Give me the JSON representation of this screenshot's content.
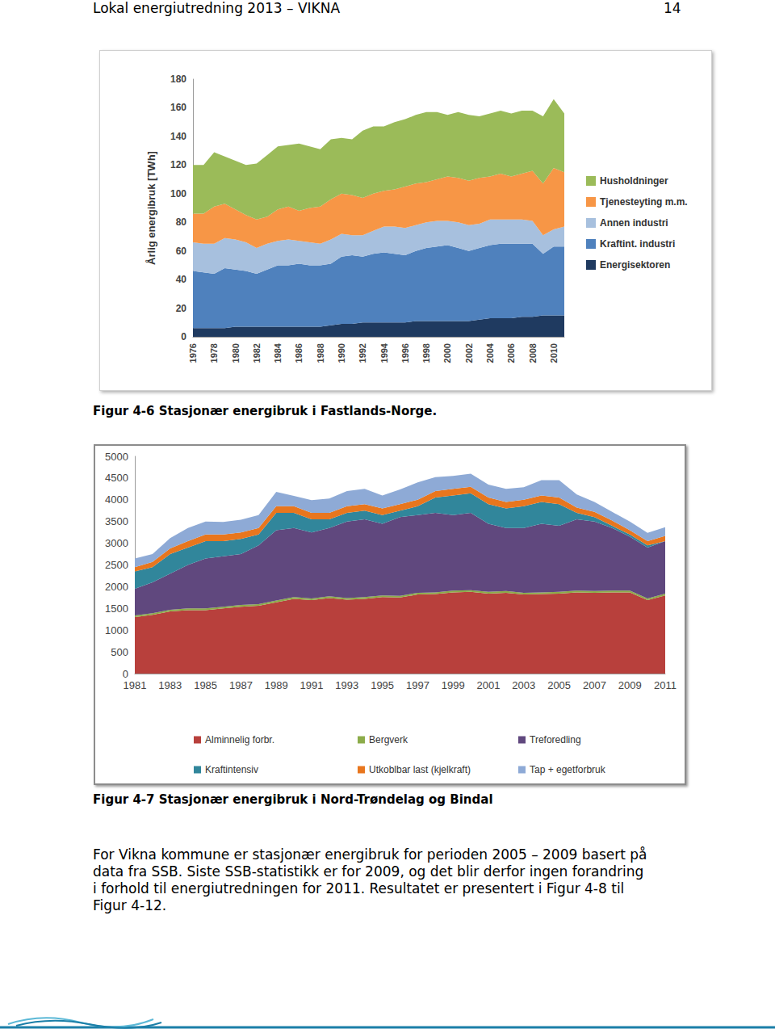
{
  "header": {
    "title": "Lokal energiutredning 2013 – VIKNA",
    "page": 14
  },
  "chart_data": [
    {
      "type": "area",
      "stacked": true,
      "grid": false,
      "legend": "right",
      "y_label": "Årlig energibruk [TWh]",
      "categories": [
        "1976",
        null,
        "1978",
        null,
        "1980",
        null,
        "1982",
        null,
        "1984",
        null,
        "1986",
        null,
        "1988",
        null,
        "1990",
        null,
        "1992",
        null,
        "1994",
        null,
        "1996",
        null,
        "1998",
        null,
        "2000",
        null,
        "2002",
        null,
        "2004",
        null,
        "2006",
        null,
        "2008",
        null,
        "2010",
        null
      ],
      "ylim": [
        0,
        180
      ],
      "yticks": [
        0,
        20,
        40,
        60,
        80,
        100,
        120,
        140,
        160,
        180
      ],
      "series": [
        {
          "name": "Energisektoren",
          "color": "#1f3a60",
          "values": [
            6,
            6,
            6,
            6,
            7,
            7,
            7,
            7,
            7,
            7,
            7,
            7,
            7,
            8,
            9,
            9,
            10,
            10,
            10,
            10,
            10,
            11,
            11,
            11,
            11,
            11,
            11,
            12,
            13,
            13,
            13,
            14,
            14,
            15,
            15,
            15
          ]
        },
        {
          "name": "Kraftint. industri",
          "color": "#4f81bd",
          "values": [
            40,
            39,
            38,
            42,
            40,
            39,
            37,
            40,
            43,
            43,
            44,
            43,
            43,
            43,
            47,
            48,
            46,
            48,
            49,
            48,
            47,
            49,
            51,
            52,
            53,
            51,
            49,
            50,
            51,
            52,
            52,
            51,
            51,
            43,
            48,
            48
          ]
        },
        {
          "name": "Annen industri",
          "color": "#a7c0de",
          "values": [
            20,
            20,
            21,
            21,
            21,
            20,
            18,
            18,
            17,
            18,
            16,
            16,
            15,
            17,
            16,
            14,
            15,
            16,
            18,
            19,
            19,
            18,
            18,
            18,
            17,
            18,
            18,
            17,
            18,
            17,
            17,
            17,
            16,
            13,
            12,
            14
          ]
        },
        {
          "name": "Tjenesteyting m.m.",
          "color": "#f79646",
          "values": [
            20,
            21,
            26,
            24,
            21,
            19,
            20,
            19,
            22,
            23,
            21,
            24,
            26,
            28,
            28,
            28,
            26,
            26,
            25,
            26,
            29,
            29,
            28,
            29,
            31,
            31,
            31,
            32,
            30,
            32,
            30,
            32,
            35,
            36,
            43,
            38
          ]
        },
        {
          "name": "Husholdninger",
          "color": "#9bbb59",
          "values": [
            34,
            34,
            38,
            33,
            34,
            35,
            39,
            43,
            44,
            43,
            47,
            43,
            40,
            42,
            39,
            39,
            47,
            47,
            45,
            47,
            47,
            48,
            49,
            47,
            43,
            46,
            46,
            43,
            44,
            44,
            44,
            44,
            42,
            47,
            48,
            41
          ]
        }
      ]
    },
    {
      "type": "area",
      "stacked": true,
      "grid": false,
      "legend": "bottom",
      "categories": [
        "1981",
        null,
        "1983",
        null,
        "1985",
        null,
        "1987",
        null,
        "1989",
        null,
        "1991",
        null,
        "1993",
        null,
        "1995",
        null,
        "1997",
        null,
        "1999",
        null,
        "2001",
        null,
        "2003",
        null,
        "2005",
        null,
        "2007",
        null,
        "2009",
        null,
        "2011"
      ],
      "ylim": [
        0,
        5000
      ],
      "yticks": [
        0,
        500,
        1000,
        1500,
        2000,
        2500,
        3000,
        3500,
        4000,
        4500,
        5000
      ],
      "series": [
        {
          "name": "Alminnelig forbr.",
          "color": "#b8403c",
          "values": [
            1300,
            1350,
            1430,
            1460,
            1460,
            1500,
            1540,
            1560,
            1640,
            1720,
            1690,
            1740,
            1700,
            1720,
            1760,
            1750,
            1820,
            1830,
            1870,
            1880,
            1840,
            1860,
            1820,
            1830,
            1840,
            1870,
            1860,
            1870,
            1870,
            1690,
            1800
          ]
        },
        {
          "name": "Bergverk",
          "color": "#8cac4a",
          "values": [
            40,
            40,
            40,
            40,
            40,
            40,
            40,
            40,
            40,
            40,
            40,
            40,
            40,
            40,
            40,
            40,
            40,
            40,
            40,
            40,
            40,
            40,
            40,
            40,
            40,
            40,
            40,
            40,
            40,
            40,
            40
          ]
        },
        {
          "name": "Treforedling",
          "color": "#60487e",
          "values": [
            610,
            710,
            830,
            1000,
            1150,
            1160,
            1170,
            1350,
            1620,
            1590,
            1520,
            1570,
            1760,
            1790,
            1650,
            1810,
            1790,
            1830,
            1740,
            1780,
            1570,
            1450,
            1490,
            1580,
            1520,
            1640,
            1600,
            1440,
            1240,
            1170,
            1210
          ]
        },
        {
          "name": "Kraftintensiv",
          "color": "#31869b",
          "values": [
            400,
            350,
            450,
            400,
            400,
            350,
            350,
            250,
            400,
            350,
            300,
            200,
            200,
            200,
            200,
            150,
            200,
            350,
            450,
            450,
            450,
            450,
            500,
            500,
            500,
            150,
            100,
            50,
            50,
            50,
            0
          ]
        },
        {
          "name": "Utkoblbar last (kjelkraft)",
          "color": "#e8761e",
          "values": [
            100,
            120,
            130,
            150,
            150,
            150,
            150,
            150,
            150,
            150,
            150,
            150,
            150,
            150,
            150,
            150,
            150,
            150,
            150,
            150,
            150,
            150,
            150,
            150,
            150,
            120,
            120,
            120,
            100,
            100,
            120
          ]
        },
        {
          "name": "Tap + egetforbruk",
          "color": "#8eaad6",
          "values": [
            200,
            180,
            240,
            300,
            300,
            290,
            290,
            300,
            330,
            240,
            290,
            330,
            350,
            350,
            300,
            340,
            400,
            320,
            300,
            300,
            300,
            300,
            290,
            350,
            400,
            300,
            230,
            200,
            200,
            190,
            200
          ]
        }
      ]
    }
  ],
  "figure_captions": [
    "Figur 4-6 Stasjonær energibruk i Fastlands-Norge.",
    "Figur 4-7 Stasjonær energibruk i Nord-Trøndelag og Bindal"
  ],
  "body": {
    "lines": [
      "For Vikna kommune er stasjonær energibruk for perioden 2005 – 2009 basert på",
      "data fra SSB. Siste SSB-statistikk er for 2009, og det blir derfor ingen forandring",
      "i forhold til energiutredningen for 2011. Resultatet er presentert i Figur 4-8 til",
      "Figur 4-12."
    ]
  }
}
